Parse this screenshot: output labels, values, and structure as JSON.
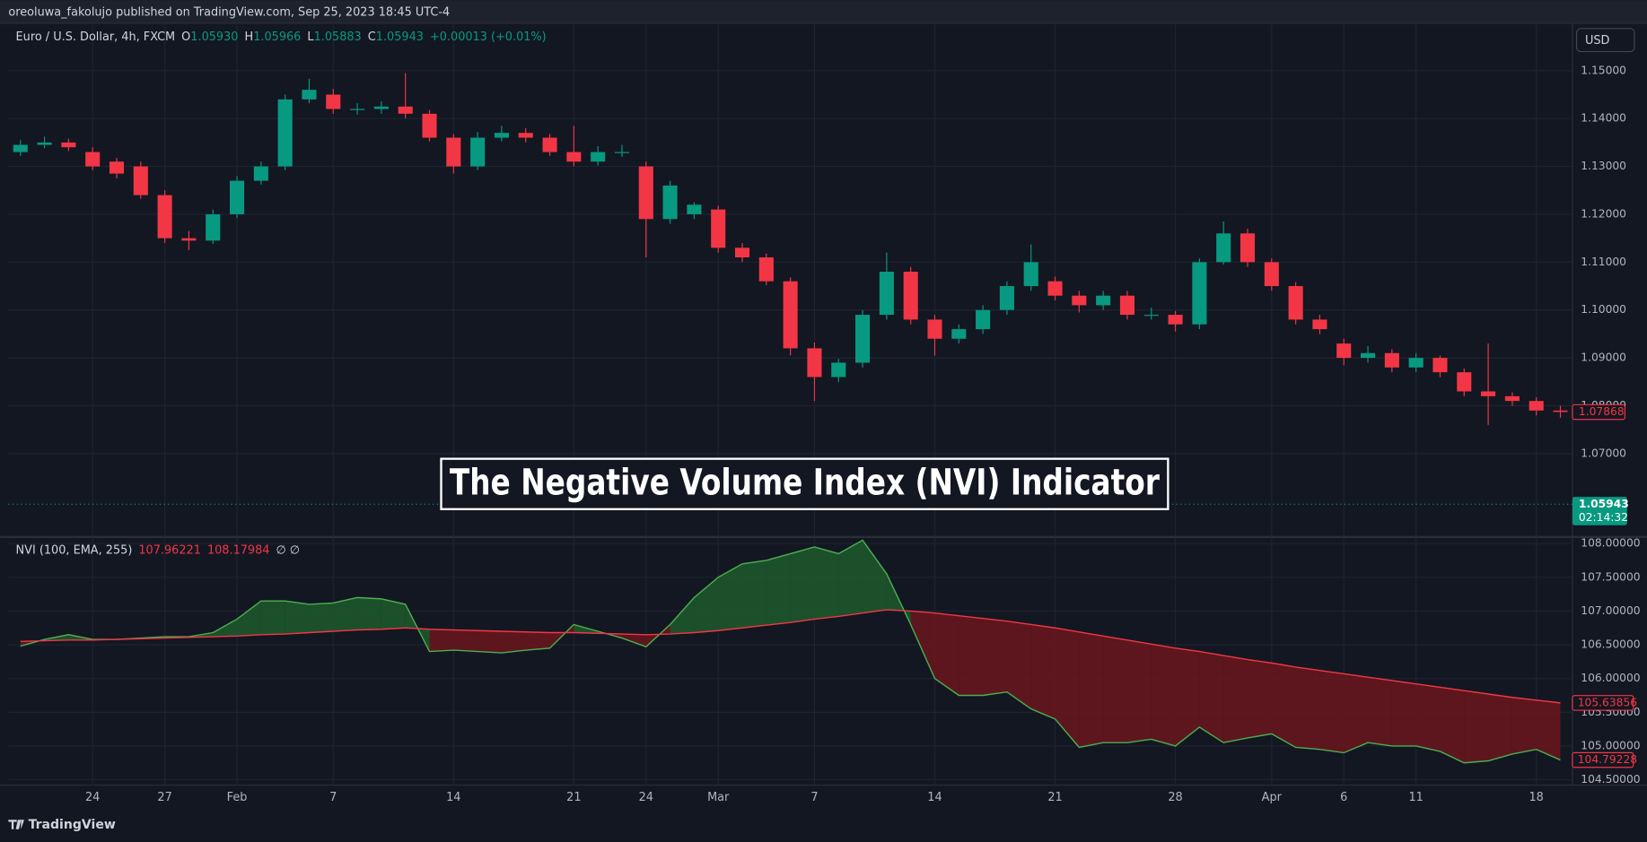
{
  "header": {
    "title": "oreoluwa_fakolujo published on TradingView.com, Sep 25, 2023 18:45 UTC-4"
  },
  "overlay": {
    "title": "The Negative Volume Index (NVI) Indicator"
  },
  "currency_button": "USD",
  "footer": {
    "brand": "TradingView"
  },
  "chart_data": [
    {
      "type": "candlestick",
      "legend": {
        "symbol": "Euro / U.S. Dollar, 4h, FXCM",
        "ohlc": [
          {
            "key": "O",
            "value": "1.05930"
          },
          {
            "key": "H",
            "value": "1.05966"
          },
          {
            "key": "L",
            "value": "1.05883"
          },
          {
            "key": "C",
            "value": "1.05943"
          }
        ],
        "change": "+0.00013 (+0.01%)"
      },
      "categories": [
        null,
        null,
        null,
        "24",
        null,
        null,
        "27",
        null,
        null,
        "Feb",
        null,
        null,
        null,
        "7",
        null,
        null,
        null,
        null,
        "14",
        null,
        null,
        null,
        null,
        "21",
        null,
        null,
        "24",
        null,
        null,
        "Mar",
        null,
        null,
        null,
        "7",
        null,
        null,
        null,
        null,
        "14",
        null,
        null,
        null,
        null,
        "21",
        null,
        null,
        null,
        null,
        "28",
        null,
        null,
        null,
        "Apr",
        null,
        null,
        "6",
        null,
        null,
        "11",
        null,
        null,
        null,
        null,
        "18",
        null
      ],
      "open": [
        1.133,
        1.1345,
        1.135,
        1.133,
        1.131,
        1.13,
        1.124,
        1.115,
        1.1145,
        1.12,
        1.127,
        1.13,
        1.144,
        1.145,
        1.142,
        1.142,
        1.1425,
        1.141,
        1.136,
        1.13,
        1.136,
        1.137,
        1.136,
        1.133,
        1.131,
        1.133,
        1.13,
        1.119,
        1.12,
        1.121,
        1.113,
        1.111,
        1.106,
        1.092,
        1.086,
        1.089,
        1.099,
        1.108,
        1.098,
        1.094,
        1.096,
        1.1,
        1.105,
        1.106,
        1.103,
        1.101,
        1.103,
        1.099,
        1.099,
        1.097,
        1.11,
        1.116,
        1.11,
        1.105,
        1.098,
        1.093,
        1.09,
        1.091,
        1.088,
        1.09,
        1.087,
        1.083,
        1.082,
        1.081,
        1.079
      ],
      "high": [
        1.1355,
        1.1362,
        1.1358,
        1.134,
        1.1318,
        1.131,
        1.125,
        1.1165,
        1.121,
        1.128,
        1.131,
        1.145,
        1.1483,
        1.1462,
        1.1432,
        1.1436,
        1.1495,
        1.1418,
        1.1368,
        1.1372,
        1.1385,
        1.138,
        1.1368,
        1.1385,
        1.1342,
        1.1345,
        1.131,
        1.127,
        1.1225,
        1.1218,
        1.114,
        1.1118,
        1.1068,
        1.0932,
        1.0898,
        1.1,
        1.112,
        1.109,
        1.099,
        1.097,
        1.101,
        1.106,
        1.1137,
        1.107,
        1.104,
        1.104,
        1.104,
        1.1005,
        1.0998,
        1.1108,
        1.1185,
        1.117,
        1.1108,
        1.1058,
        1.099,
        1.094,
        1.0925,
        1.0918,
        1.091,
        1.0905,
        1.0878,
        1.093,
        1.0828,
        1.0818,
        1.08
      ],
      "low": [
        1.1322,
        1.1338,
        1.1332,
        1.1292,
        1.1275,
        1.1232,
        1.114,
        1.1125,
        1.1138,
        1.1192,
        1.1262,
        1.1292,
        1.1432,
        1.141,
        1.1408,
        1.141,
        1.14,
        1.1352,
        1.1285,
        1.1292,
        1.1352,
        1.135,
        1.1322,
        1.13,
        1.1302,
        1.132,
        1.111,
        1.118,
        1.119,
        1.112,
        1.11,
        1.1052,
        1.0905,
        1.081,
        1.085,
        1.088,
        1.098,
        1.097,
        1.0905,
        1.093,
        1.095,
        1.099,
        1.104,
        1.102,
        1.0995,
        1.1,
        1.098,
        1.098,
        1.0955,
        1.096,
        1.1095,
        1.109,
        1.104,
        1.097,
        1.095,
        1.0885,
        1.089,
        1.087,
        1.087,
        1.086,
        1.082,
        1.076,
        1.08,
        1.078,
        1.0775
      ],
      "close": [
        1.1345,
        1.135,
        1.134,
        1.13,
        1.1285,
        1.124,
        1.115,
        1.1145,
        1.12,
        1.127,
        1.13,
        1.144,
        1.146,
        1.142,
        1.142,
        1.1425,
        1.141,
        1.136,
        1.13,
        1.136,
        1.137,
        1.136,
        1.133,
        1.131,
        1.133,
        1.133,
        1.119,
        1.126,
        1.122,
        1.113,
        1.111,
        1.106,
        1.092,
        1.086,
        1.089,
        1.099,
        1.108,
        1.098,
        1.094,
        1.096,
        1.1,
        1.105,
        1.11,
        1.103,
        1.101,
        1.103,
        1.099,
        1.099,
        1.097,
        1.11,
        1.116,
        1.11,
        1.105,
        1.098,
        1.096,
        1.09,
        1.091,
        1.088,
        1.09,
        1.087,
        1.083,
        1.082,
        1.081,
        1.079,
        1.0787
      ],
      "up_color": "#089981",
      "down_color": "#f23645",
      "ylim": [
        1.0527,
        1.1599
      ],
      "yticks": [
        {
          "value": 1.07,
          "label": "1.07000"
        },
        {
          "value": 1.08,
          "label": "1.08000"
        },
        {
          "value": 1.09,
          "label": "1.09000"
        },
        {
          "value": 1.1,
          "label": "1.10000"
        },
        {
          "value": 1.11,
          "label": "1.11000"
        },
        {
          "value": 1.12,
          "label": "1.12000"
        },
        {
          "value": 1.13,
          "label": "1.13000"
        },
        {
          "value": 1.14,
          "label": "1.14000"
        },
        {
          "value": 1.15,
          "label": "1.15000"
        }
      ],
      "price_lines": [
        {
          "value": 1.07868,
          "color": "#f23645"
        },
        {
          "value": 1.05943,
          "color": "#089981",
          "sublabel": "02:14:32"
        }
      ],
      "grid": true
    },
    {
      "type": "area-band",
      "legend": {
        "name": "NVI (100, EMA, 255)",
        "values": [
          "107.96221",
          "108.17984"
        ],
        "extra": "∅ ∅"
      },
      "series": [
        {
          "color": "#4caf50",
          "values": [
            106.48,
            106.58,
            106.65,
            106.58,
            106.58,
            106.6,
            106.62,
            106.62,
            106.68,
            106.88,
            107.15,
            107.15,
            107.1,
            107.12,
            107.2,
            107.18,
            107.1,
            106.4,
            106.42,
            106.4,
            106.38,
            106.42,
            106.45,
            106.8,
            106.7,
            106.6,
            106.47,
            106.8,
            107.2,
            107.5,
            107.7,
            107.75,
            107.85,
            107.95,
            107.85,
            108.05,
            107.55,
            106.8,
            106.0,
            105.75,
            105.75,
            105.8,
            105.55,
            105.4,
            104.98,
            105.05,
            105.05,
            105.1,
            105.0,
            105.28,
            105.05,
            105.12,
            105.18,
            104.98,
            104.95,
            104.9,
            105.05,
            105.0,
            105.0,
            104.92,
            104.75,
            104.78,
            104.88,
            104.95,
            104.79228
          ]
        },
        {
          "color": "#f23645",
          "values": [
            106.55,
            106.56,
            106.57,
            106.57,
            106.58,
            106.59,
            106.6,
            106.61,
            106.62,
            106.63,
            106.65,
            106.66,
            106.68,
            106.7,
            106.72,
            106.73,
            106.75,
            106.73,
            106.72,
            106.71,
            106.7,
            106.69,
            106.68,
            106.68,
            106.67,
            106.66,
            106.65,
            106.66,
            106.68,
            106.71,
            106.75,
            106.79,
            106.83,
            106.88,
            106.92,
            106.97,
            107.02,
            107.0,
            106.97,
            106.93,
            106.89,
            106.85,
            106.8,
            106.75,
            106.69,
            106.63,
            106.57,
            106.51,
            106.45,
            106.4,
            106.34,
            106.28,
            106.23,
            106.17,
            106.12,
            106.07,
            106.02,
            105.97,
            105.92,
            105.87,
            105.82,
            105.77,
            105.72,
            105.68,
            105.63856
          ]
        }
      ],
      "fill_up_color": "#1f5a2c",
      "fill_down_color": "#6b161c",
      "ylim": [
        104.42,
        108.09
      ],
      "yticks": [
        {
          "value": 104.5,
          "label": "104.50000"
        },
        {
          "value": 105,
          "label": "105.00000"
        },
        {
          "value": 105.5,
          "label": "105.50000"
        },
        {
          "value": 106,
          "label": "106.00000"
        },
        {
          "value": 106.5,
          "label": "106.50000"
        },
        {
          "value": 107,
          "label": "107.00000"
        },
        {
          "value": 107.5,
          "label": "107.50000"
        },
        {
          "value": 108,
          "label": "108.00000"
        }
      ],
      "grid": true
    }
  ]
}
